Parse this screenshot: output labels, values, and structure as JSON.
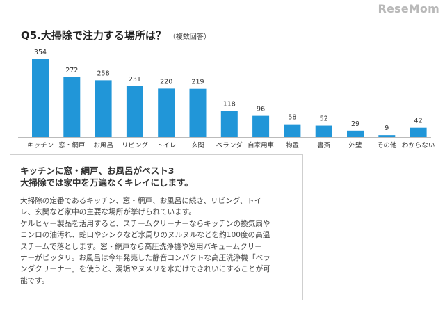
{
  "watermark": "ReseMom",
  "chart_title": "Q5.大掃除で注力する場所は？",
  "chart_subtitle": "（複数回答）",
  "chart_data": {
    "type": "bar",
    "categories": [
      "キッチン",
      "窓・網戸",
      "お風呂",
      "リビング",
      "トイレ",
      "玄関",
      "ベランダ",
      "自家用車",
      "物置",
      "書斎",
      "外壁",
      "その他",
      "わからない"
    ],
    "values": [
      354,
      272,
      258,
      231,
      220,
      219,
      118,
      96,
      58,
      52,
      29,
      9,
      42
    ],
    "bar_color": "#2196d8",
    "ylim": [
      0,
      354
    ],
    "grid": false,
    "legend": "none"
  },
  "textbox": {
    "heading_lines": [
      "キッチンに窓・網戸、お風呂がベスト3",
      "大掃除では家中を万遍なくキレイにします。"
    ],
    "body_lines": [
      "大掃除の定番であるキッチン、窓・網戸、お風呂に続き、リビング、トイ",
      "レ、玄関など家中の主要な場所が挙げられています。",
      "ケルヒャー製品を活用すると、スチームクリーナーならキッチンの換気扇や",
      "コンロの油汚れ、蛇口やシンクなど水周りのヌルヌルなどを約100度の高温",
      "スチームで落とします。窓・網戸なら高圧洗浄機や窓用バキュームクリー",
      "ナーがピッタリ。お風呂は今年発売した静音コンパクトな高圧洗浄機「ベラ",
      "ンダクリーナー」を使うと、湯垢やヌメリを水だけできれいにすることが可",
      "能です。"
    ]
  }
}
